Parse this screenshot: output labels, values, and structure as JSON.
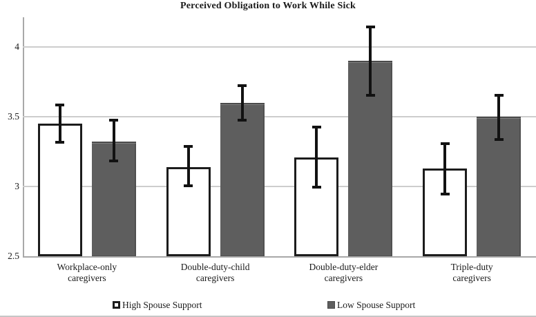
{
  "title": "Perceived Obligation to Work While Sick",
  "colors": {
    "grid": "#cdcdcd",
    "axis": "#a8a8a8",
    "error_bar": "#121212",
    "text": "#1a1a1a",
    "high_fill": "#ffffff",
    "high_border": "#1c1c1c",
    "low_fill": "#5e5e5e",
    "low_border": "#4a4a4a"
  },
  "chart_data": {
    "type": "bar",
    "title": "Perceived Obligation to Work While Sick",
    "categories": [
      "Workplace-only\ncaregivers",
      "Double-duty-child\ncaregivers",
      "Double-duty-elder\ncaregivers",
      "Triple-duty\ncaregivers"
    ],
    "series": [
      {
        "name": "High Spouse Support",
        "values": [
          3.45,
          3.14,
          3.21,
          3.13
        ],
        "error_low": [
          3.31,
          3.0,
          2.99,
          2.94
        ],
        "error_high": [
          3.59,
          3.29,
          3.43,
          3.31
        ],
        "fill": "#ffffff",
        "border": "#1c1c1c"
      },
      {
        "name": "Low Spouse Support",
        "values": [
          3.32,
          3.6,
          3.9,
          3.5
        ],
        "error_low": [
          3.18,
          3.47,
          3.65,
          3.33
        ],
        "error_high": [
          3.48,
          3.73,
          4.15,
          3.66
        ],
        "fill": "#5e5e5e",
        "border": "#4a4a4a"
      }
    ],
    "ylim": [
      2.5,
      4.22
    ],
    "yticks": [
      4,
      3.5,
      3,
      2.5
    ],
    "ytick_labels": [
      "4",
      "3.5",
      "3",
      "2.5"
    ],
    "grid": true,
    "error_bars": true,
    "legend_position": "bottom"
  }
}
